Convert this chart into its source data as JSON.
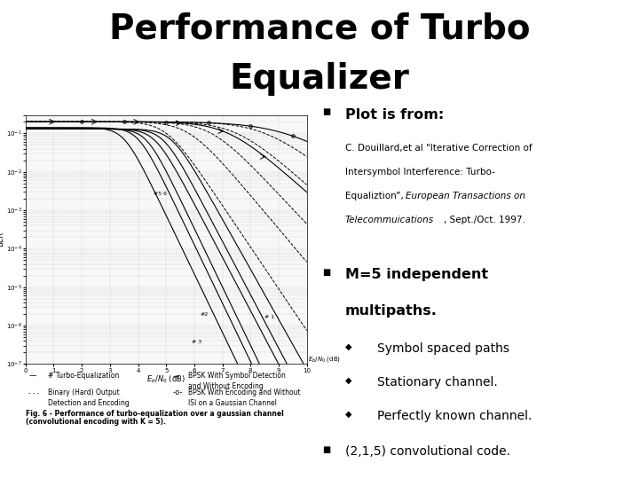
{
  "title_line1": "Performance of Turbo",
  "title_line2": "Equalizer",
  "title_fontsize": 28,
  "title_fontweight": "bold",
  "bg_color": "#ffffff",
  "bullet1_header": "Plot is from:",
  "citation_line1": "C. Douillard,et al \"Iterative Correction of",
  "citation_line2": "Intersymbol Interference: Turbo-",
  "citation_line3_normal": "Equaliztion\", ",
  "citation_line3_italic": "European Transactions on",
  "citation_line4_italic": "Telecommuications",
  "citation_line4_normal": ", Sept./Oct. 1997.",
  "bullet2_line1": "M=5 independent",
  "bullet2_line2": "multipaths.",
  "sub_bullets": [
    "Symbol spaced paths",
    "Stationary channel.",
    "Perfectly known channel."
  ],
  "bullet3": "(2,1,5) convolutional code.",
  "fig_caption_line1": "Fig. 6 - Performance of turbo-equalization over a gaussian channel",
  "fig_caption_line2": "(convolutional encoding with K = 5).",
  "legend_items": [
    "# Turbo-Equalization",
    "Binary (Hard) Output",
    "Detection and Encoding",
    "BPSK With Symbol Detection",
    "and Without Encoding",
    "BPSK With Encoding and Without",
    "ISI on a Gaussian Channel"
  ]
}
